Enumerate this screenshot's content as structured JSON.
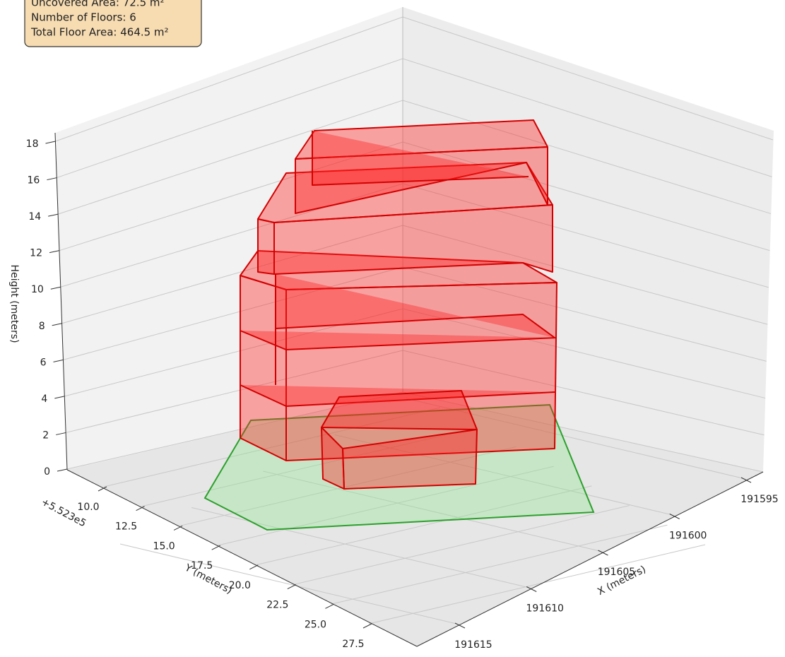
{
  "chart_data": {
    "type": "building3d",
    "info_lines": [
      "Uncovered Area: 72.5 m²",
      "Number of Floors: 6",
      "Total Floor Area: 464.5 m²"
    ],
    "xlabel": "X (meters)",
    "ylabel": "Y (meters)",
    "zlabel": "Height (meters)",
    "y_offset": "+5.523e5",
    "xlim": [
      191595,
      191615
    ],
    "xticks": [
      191595,
      191600,
      191605,
      191610,
      191615
    ],
    "ylim": [
      10,
      27.5
    ],
    "yticks": [
      {
        "value": 10,
        "label": "10.0"
      },
      {
        "value": 12.5,
        "label": "12.5"
      },
      {
        "value": 15,
        "label": "15.0"
      },
      {
        "value": 17.5,
        "label": "17.5"
      },
      {
        "value": 20,
        "label": "20.0"
      },
      {
        "value": 22.5,
        "label": "22.5"
      },
      {
        "value": 25,
        "label": "25.0"
      },
      {
        "value": 27.5,
        "label": "27.5"
      }
    ],
    "zlim": [
      0,
      18
    ],
    "zticks": [
      0,
      2,
      4,
      6,
      8,
      10,
      12,
      14,
      16,
      18
    ],
    "grid": true
  }
}
